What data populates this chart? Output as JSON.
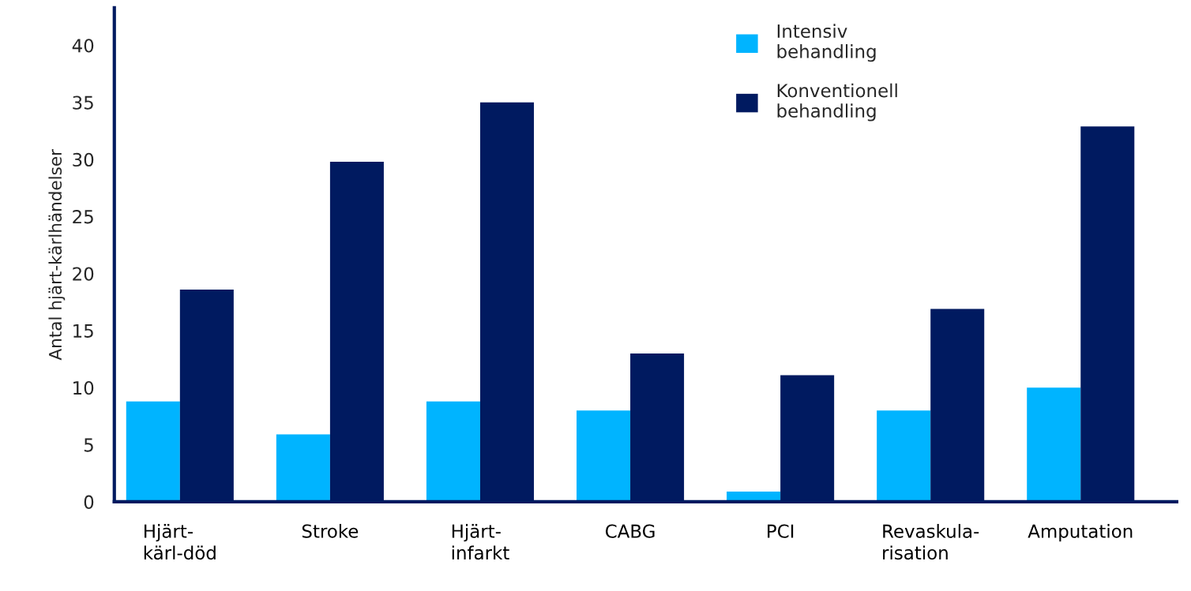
{
  "chart_data": {
    "type": "bar",
    "ylabel": "Antal hjärt-kärlhändelser",
    "categories": [
      "Hjärt-\nkärl-död",
      "Stroke",
      "Hjärt-\ninfarkt",
      "CABG",
      "PCI",
      "Revaskula-\nrisation",
      "Amputation"
    ],
    "series": [
      {
        "name": "Intensiv\nbehandling",
        "color": "#00b4ff",
        "values": [
          8.8,
          5.9,
          8.8,
          8.0,
          0.9,
          8.0,
          10.0
        ]
      },
      {
        "name": "Konventionell\nbehandling",
        "color": "#001a60",
        "values": [
          18.6,
          29.8,
          35,
          13,
          11.1,
          16.9,
          32.9
        ]
      }
    ],
    "ylim": [
      0,
      43.3
    ],
    "yticks": [
      0,
      5,
      10,
      15,
      20,
      25,
      30,
      35,
      40
    ],
    "grid": false,
    "legend": "top right"
  }
}
